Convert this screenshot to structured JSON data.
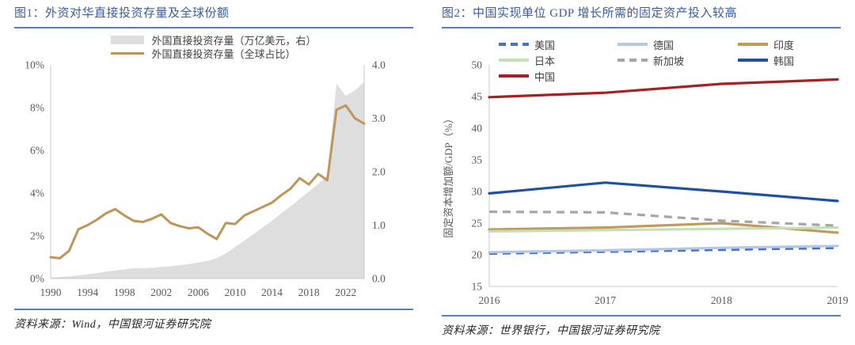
{
  "figures": {
    "fig1": {
      "title": "图1：外资对华直接投资存量及全球份额",
      "source": "资料来源：Wind，中国银河证券研究院"
    },
    "fig2": {
      "title": "图2：中国实现单位 GDP 增长所需的固定资产投入较高",
      "source": "资料来源：世界银行，中国银河证券研究院"
    }
  },
  "colors": {
    "title": "#3A5BA0",
    "rule": "#5B7CB8",
    "tick_text": "#595959",
    "axis_line": "#C8C8C8",
    "source_text": "#262626"
  },
  "chart_data": [
    {
      "id": "fig1",
      "type": "area",
      "title": "外资对华直接投资存量及全球份额",
      "x": [
        1990,
        1991,
        1992,
        1993,
        1994,
        1995,
        1996,
        1997,
        1998,
        1999,
        2000,
        2001,
        2002,
        2003,
        2004,
        2005,
        2006,
        2007,
        2008,
        2009,
        2010,
        2011,
        2012,
        2013,
        2014,
        2015,
        2016,
        2017,
        2018,
        2019,
        2020,
        2021,
        2022,
        2023,
        2024
      ],
      "x_ticks": [
        1990,
        1994,
        1998,
        2002,
        2006,
        2010,
        2014,
        2018,
        2022
      ],
      "left_axis": {
        "min": 0,
        "max": 10,
        "tick_step": 2,
        "ticks": [
          "0%",
          "2%",
          "4%",
          "6%",
          "8%",
          "10%"
        ]
      },
      "right_axis": {
        "min": 0,
        "max": 4,
        "tick_step": 1,
        "ticks": [
          "0.0",
          "1.0",
          "2.0",
          "3.0",
          "4.0"
        ]
      },
      "grid": false,
      "legend_position": "top-center",
      "series": [
        {
          "name": "外国直接投资存量（万亿美元，右）",
          "type": "area",
          "axis": "right",
          "color": "#DEDEDE",
          "values": [
            0.02,
            0.03,
            0.04,
            0.06,
            0.08,
            0.1,
            0.13,
            0.15,
            0.17,
            0.19,
            0.19,
            0.2,
            0.22,
            0.23,
            0.25,
            0.27,
            0.3,
            0.33,
            0.38,
            0.47,
            0.59,
            0.71,
            0.83,
            0.96,
            1.08,
            1.22,
            1.35,
            1.49,
            1.63,
            1.77,
            1.92,
            3.65,
            3.42,
            3.52,
            3.68
          ]
        },
        {
          "name": "外国直接投资存量（全球占比）",
          "type": "line",
          "axis": "left",
          "color": "#BE955A",
          "width": 3,
          "values": [
            1.0,
            0.95,
            1.3,
            2.3,
            2.5,
            2.75,
            3.05,
            3.25,
            2.95,
            2.7,
            2.65,
            2.8,
            3.0,
            2.6,
            2.45,
            2.35,
            2.4,
            2.1,
            1.85,
            2.6,
            2.55,
            2.95,
            3.15,
            3.35,
            3.55,
            3.9,
            4.2,
            4.7,
            4.4,
            4.9,
            4.6,
            7.9,
            8.1,
            7.5,
            7.25
          ]
        }
      ]
    },
    {
      "id": "fig2",
      "type": "line",
      "title": "中国实现单位 GDP 增长所需的固定资产投入较高",
      "ylabel": "固定资本增加额/GDP（%）",
      "x": [
        2016,
        2017,
        2018,
        2019
      ],
      "y_axis": {
        "min": 15,
        "max": 50,
        "tick_step": 5,
        "ticks": [
          "15",
          "20",
          "25",
          "30",
          "35",
          "40",
          "45",
          "50"
        ]
      },
      "grid": false,
      "legend_position": "top",
      "series": [
        {
          "name": "美国",
          "color": "#4472C4",
          "dash": "10,7",
          "values": [
            20.2,
            20.5,
            20.8,
            21.1
          ]
        },
        {
          "name": "德国",
          "color": "#B4C7E7",
          "dash": null,
          "values": [
            20.4,
            20.7,
            21.1,
            21.4
          ]
        },
        {
          "name": "印度",
          "color": "#C09A5E",
          "dash": null,
          "values": [
            24.0,
            24.3,
            25.0,
            23.5
          ]
        },
        {
          "name": "日本",
          "color": "#C5E0B4",
          "dash": null,
          "values": [
            23.7,
            23.9,
            24.1,
            24.3
          ]
        },
        {
          "name": "新加坡",
          "color": "#A6A6A6",
          "dash": "10,7",
          "values": [
            26.8,
            26.7,
            25.4,
            24.6
          ]
        },
        {
          "name": "韩国",
          "color": "#2050A0",
          "dash": null,
          "values": [
            29.7,
            31.4,
            30.0,
            28.5
          ]
        },
        {
          "name": "中国",
          "color": "#A62024",
          "dash": null,
          "values": [
            44.9,
            45.6,
            47.0,
            47.7
          ]
        }
      ]
    }
  ]
}
